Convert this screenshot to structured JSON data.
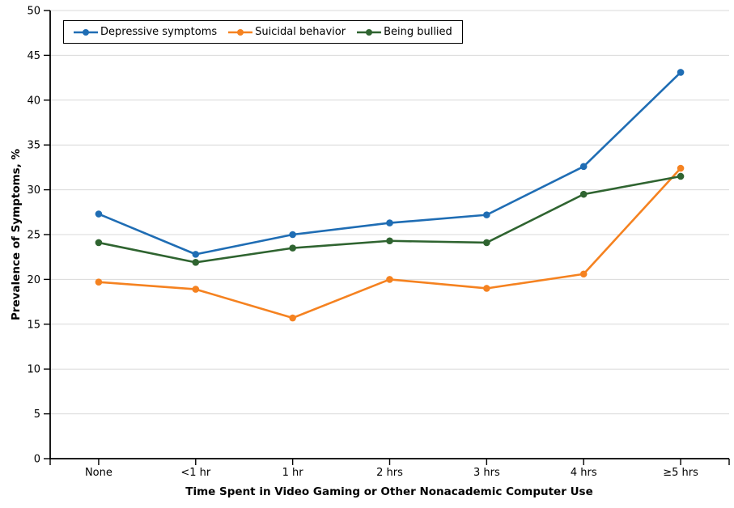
{
  "chart_data": {
    "type": "line",
    "title": "",
    "xlabel": "Time Spent in Video Gaming or Other Nonacademic Computer Use",
    "ylabel": "Prevalence of Symptoms, %",
    "categories": [
      "None",
      "<1 hr",
      "1 hr",
      "2 hrs",
      "3 hrs",
      "4 hrs",
      "≥5 hrs"
    ],
    "series": [
      {
        "name": "Depressive symptoms",
        "color": "#1f6db4",
        "values": [
          27.3,
          22.8,
          25.0,
          26.3,
          27.2,
          32.6,
          43.1
        ]
      },
      {
        "name": "Suicidal behavior",
        "color": "#f58220",
        "values": [
          19.7,
          18.9,
          15.7,
          20.0,
          19.0,
          20.6,
          32.4
        ]
      },
      {
        "name": "Being bullied",
        "color": "#2f6430",
        "values": [
          24.1,
          21.9,
          23.5,
          24.3,
          24.1,
          29.5,
          31.5
        ]
      }
    ],
    "ylim": [
      0,
      50
    ],
    "yticks": [
      0,
      5,
      10,
      15,
      20,
      25,
      30,
      35,
      40,
      45,
      50
    ],
    "grid": "horizontal",
    "gridline_color": "#d9d9d9",
    "axis_color": "#000000",
    "legend_position": "top-left"
  }
}
